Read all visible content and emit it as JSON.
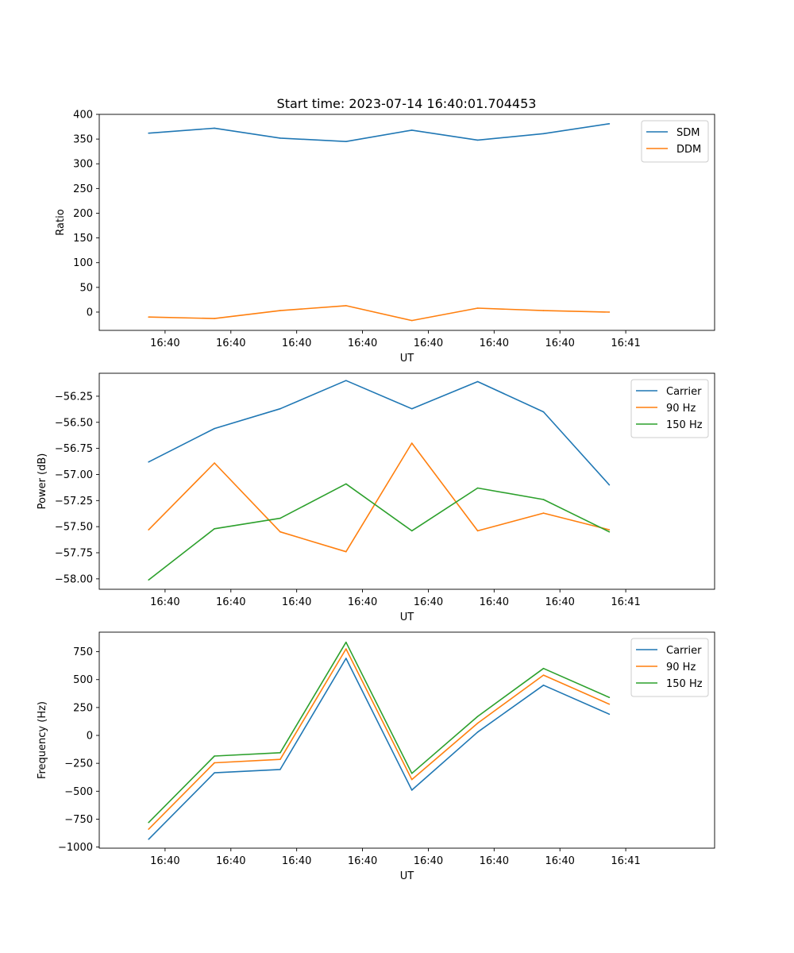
{
  "figure_title": "Start time: 2023-07-14 16:40:01.704453",
  "chart_data": [
    {
      "type": "line",
      "title": "Start time: 2023-07-14 16:40:01.704453",
      "xlabel": "UT",
      "ylabel": "Ratio",
      "x_tick_labels": [
        "16:40",
        "16:40",
        "16:40",
        "16:40",
        "16:40",
        "16:40",
        "16:40",
        "16:41"
      ],
      "xlim": [
        0,
        9.35
      ],
      "x": [
        0.75,
        1.75,
        2.75,
        3.75,
        4.75,
        5.75,
        6.75,
        7.75
      ],
      "ylim": [
        -37,
        400
      ],
      "y_ticks": [
        0,
        50,
        100,
        150,
        200,
        250,
        300,
        350,
        400
      ],
      "legend_position": "top-right",
      "series": [
        {
          "name": "SDM",
          "color": "#1f77b4",
          "values": [
            362,
            372,
            352,
            345,
            368,
            348,
            361,
            381
          ]
        },
        {
          "name": "DDM",
          "color": "#ff7f0e",
          "values": [
            -10,
            -13,
            3,
            13,
            -17,
            8,
            3,
            0
          ]
        }
      ]
    },
    {
      "type": "line",
      "title": "",
      "xlabel": "UT",
      "ylabel": "Power (dB)",
      "x_tick_labels": [
        "16:40",
        "16:40",
        "16:40",
        "16:40",
        "16:40",
        "16:40",
        "16:40",
        "16:41"
      ],
      "xlim": [
        0,
        9.35
      ],
      "x": [
        0.75,
        1.75,
        2.75,
        3.75,
        4.75,
        5.75,
        6.75,
        7.75
      ],
      "ylim": [
        -58.1,
        -56.03
      ],
      "y_ticks": [
        -58.0,
        -57.75,
        -57.5,
        -57.25,
        -57.0,
        -56.75,
        -56.5,
        -56.25
      ],
      "y_tick_labels": [
        "−58.00",
        "−57.75",
        "−57.50",
        "−57.25",
        "−57.00",
        "−56.75",
        "−56.50",
        "−56.25"
      ],
      "legend_position": "top-right",
      "series": [
        {
          "name": "Carrier",
          "color": "#1f77b4",
          "values": [
            -56.88,
            -56.56,
            -56.37,
            -56.1,
            -56.37,
            -56.11,
            -56.4,
            -57.1
          ]
        },
        {
          "name": "90 Hz",
          "color": "#ff7f0e",
          "values": [
            -57.53,
            -56.89,
            -57.55,
            -57.74,
            -56.7,
            -57.54,
            -57.37,
            -57.53
          ]
        },
        {
          "name": "150 Hz",
          "color": "#2ca02c",
          "values": [
            -58.01,
            -57.52,
            -57.42,
            -57.09,
            -57.54,
            -57.13,
            -57.24,
            -57.55
          ]
        }
      ]
    },
    {
      "type": "line",
      "title": "",
      "xlabel": "UT",
      "ylabel": "Frequency (Hz)",
      "x_tick_labels": [
        "16:40",
        "16:40",
        "16:40",
        "16:40",
        "16:40",
        "16:40",
        "16:40",
        "16:41"
      ],
      "xlim": [
        0,
        9.35
      ],
      "x": [
        0.75,
        1.75,
        2.75,
        3.75,
        4.75,
        5.75,
        6.75,
        7.75
      ],
      "ylim": [
        -1010,
        925
      ],
      "y_ticks": [
        -1000,
        -750,
        -500,
        -250,
        0,
        250,
        500,
        750
      ],
      "y_tick_labels": [
        "−1000",
        "−750",
        "−500",
        "−250",
        "0",
        "250",
        "500",
        "750"
      ],
      "legend_position": "top-right",
      "series": [
        {
          "name": "Carrier",
          "color": "#1f77b4",
          "values": [
            -930,
            -335,
            -305,
            690,
            -490,
            30,
            450,
            190
          ]
        },
        {
          "name": "90 Hz",
          "color": "#ff7f0e",
          "values": [
            -840,
            -245,
            -215,
            775,
            -395,
            110,
            540,
            280
          ]
        },
        {
          "name": "150 Hz",
          "color": "#2ca02c",
          "values": [
            -780,
            -185,
            -155,
            835,
            -340,
            170,
            600,
            340
          ]
        }
      ]
    }
  ]
}
